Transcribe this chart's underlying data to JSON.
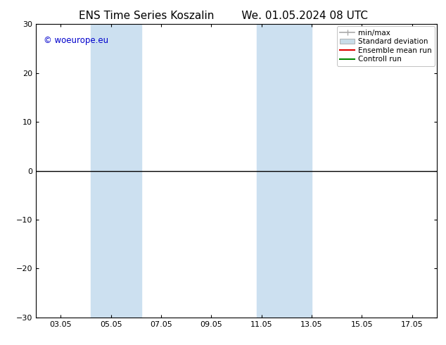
{
  "title_left": "ENS Time Series Koszalin",
  "title_right": "We. 01.05.2024 08 UTC",
  "ylim": [
    -30,
    30
  ],
  "yticks": [
    -30,
    -20,
    -10,
    0,
    10,
    20,
    30
  ],
  "xtick_labels": [
    "03.05",
    "05.05",
    "07.05",
    "09.05",
    "11.05",
    "13.05",
    "15.05",
    "17.05"
  ],
  "xtick_positions": [
    1,
    3,
    5,
    7,
    9,
    11,
    13,
    15
  ],
  "x_min": 0,
  "x_max": 16,
  "shaded_bands": [
    {
      "x_start": 2.2,
      "x_end": 4.2
    },
    {
      "x_start": 8.8,
      "x_end": 11.0
    }
  ],
  "shaded_color": "#cce0f0",
  "watermark_text": "© woeurope.eu",
  "watermark_color": "#0000cc",
  "legend_items": [
    {
      "label": "min/max",
      "color": "#aaaaaa",
      "lw": 1.2,
      "ls": "-",
      "type": "line_with_caps"
    },
    {
      "label": "Standard deviation",
      "color": "#c8dce8",
      "lw": 6,
      "ls": "-",
      "type": "patch"
    },
    {
      "label": "Ensemble mean run",
      "color": "#dd0000",
      "lw": 1.5,
      "ls": "-",
      "type": "line"
    },
    {
      "label": "Controll run",
      "color": "#008800",
      "lw": 1.5,
      "ls": "-",
      "type": "line"
    }
  ],
  "zero_line_color": "#000000",
  "zero_line_lw": 1.0,
  "background_color": "#ffffff",
  "title_fontsize": 11,
  "tick_fontsize": 8,
  "legend_fontsize": 7.5,
  "watermark_fontsize": 8.5
}
